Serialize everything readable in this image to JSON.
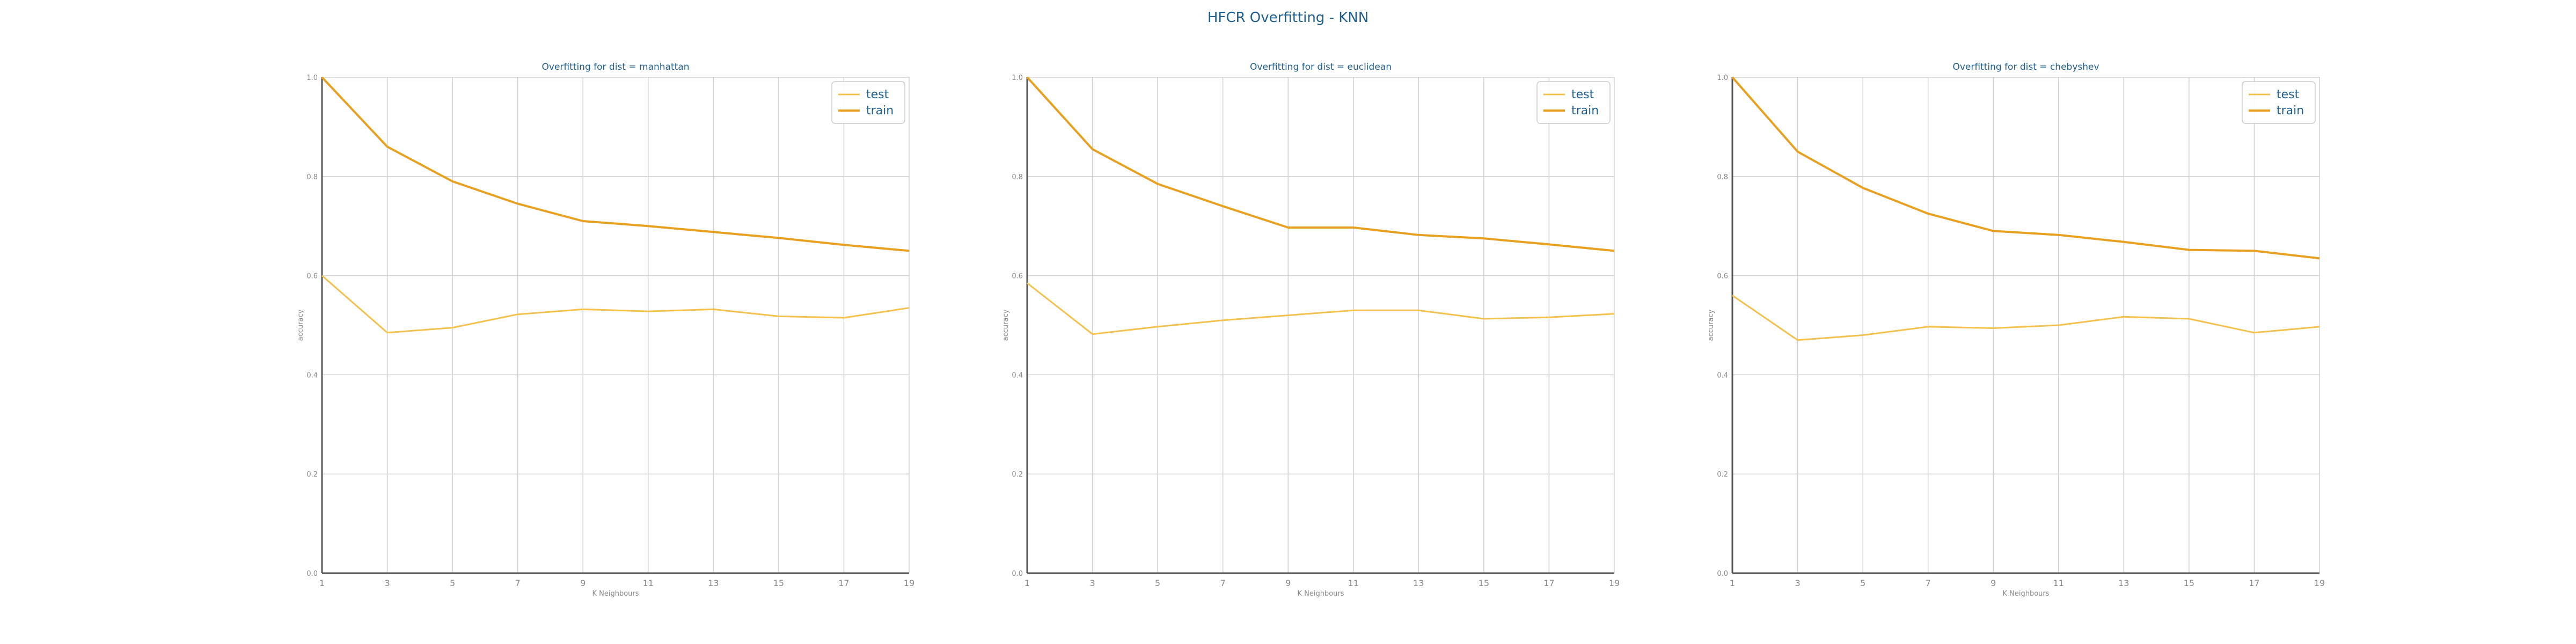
{
  "figure": {
    "title": "HFCR Overfitting - KNN"
  },
  "colors": {
    "test": "#f2c14e",
    "train": "#e8a020",
    "title": "#1f5f8b",
    "grid": "#d0d0d0",
    "axis": "#555555",
    "tick_label": "#888888"
  },
  "chart_data": [
    {
      "type": "line",
      "title": "Overfitting for dist = manhattan",
      "xlabel": "K Neighbours",
      "ylabel": "accuracy",
      "x": [
        1,
        3,
        5,
        7,
        9,
        11,
        13,
        15,
        17,
        19
      ],
      "ylim": [
        0.0,
        1.0
      ],
      "yticks": [
        0.0,
        0.2,
        0.4,
        0.6,
        0.8,
        1.0
      ],
      "grid": true,
      "legend": "top-right",
      "series": [
        {
          "name": "test",
          "values": [
            0.6,
            0.485,
            0.495,
            0.522,
            0.532,
            0.528,
            0.532,
            0.518,
            0.515,
            0.535
          ]
        },
        {
          "name": "train",
          "values": [
            1.0,
            0.86,
            0.79,
            0.745,
            0.71,
            0.7,
            0.688,
            0.676,
            0.662,
            0.65
          ]
        }
      ]
    },
    {
      "type": "line",
      "title": "Overfitting for dist = euclidean",
      "xlabel": "K Neighbours",
      "ylabel": "accuracy",
      "x": [
        1,
        3,
        5,
        7,
        9,
        11,
        13,
        15,
        17,
        19
      ],
      "ylim": [
        0.0,
        1.0
      ],
      "yticks": [
        0.0,
        0.2,
        0.4,
        0.6,
        0.8,
        1.0
      ],
      "grid": true,
      "legend": "top-right",
      "series": [
        {
          "name": "test",
          "values": [
            0.585,
            0.482,
            0.497,
            0.51,
            0.52,
            0.53,
            0.53,
            0.513,
            0.516,
            0.523
          ]
        },
        {
          "name": "train",
          "values": [
            1.0,
            0.855,
            0.785,
            0.74,
            0.697,
            0.697,
            0.682,
            0.675,
            0.663,
            0.65
          ]
        }
      ]
    },
    {
      "type": "line",
      "title": "Overfitting for dist = chebyshev",
      "xlabel": "K Neighbours",
      "ylabel": "accuracy",
      "x": [
        1,
        3,
        5,
        7,
        9,
        11,
        13,
        15,
        17,
        19
      ],
      "ylim": [
        0.0,
        1.0
      ],
      "yticks": [
        0.0,
        0.2,
        0.4,
        0.6,
        0.8,
        1.0
      ],
      "grid": true,
      "legend": "top-right",
      "series": [
        {
          "name": "test",
          "values": [
            0.56,
            0.47,
            0.48,
            0.497,
            0.494,
            0.5,
            0.517,
            0.513,
            0.485,
            0.497
          ]
        },
        {
          "name": "train",
          "values": [
            1.0,
            0.85,
            0.777,
            0.725,
            0.69,
            0.682,
            0.668,
            0.652,
            0.65,
            0.635
          ]
        }
      ]
    }
  ]
}
